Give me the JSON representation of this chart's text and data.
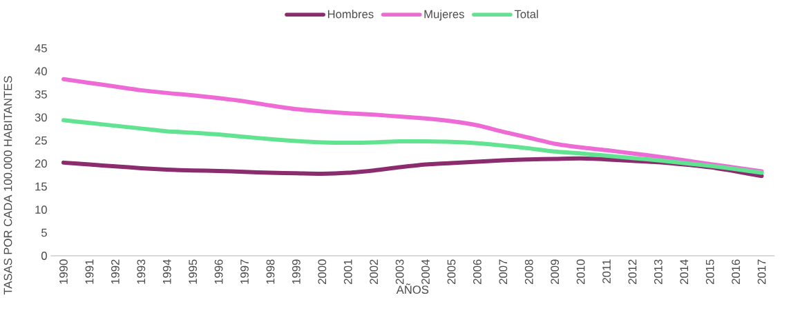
{
  "chart_data": {
    "type": "line",
    "xlabel": "AÑOS",
    "ylabel": "TASAS POR CADA 100.000 HABITANTES",
    "categories": [
      "1990",
      "1991",
      "1992",
      "1993",
      "1994",
      "1995",
      "1996",
      "1997",
      "1998",
      "1999",
      "2000",
      "2001",
      "2002",
      "2003",
      "2004",
      "2005",
      "2006",
      "2007",
      "2008",
      "2009",
      "2010",
      "2011",
      "2012",
      "2013",
      "2014",
      "2015",
      "2016",
      "2017"
    ],
    "series": [
      {
        "name": "Hombres",
        "color": "#8b2c6e",
        "values": [
          20.2,
          19.8,
          19.4,
          19.0,
          18.7,
          18.5,
          18.4,
          18.2,
          18.0,
          17.9,
          17.8,
          18.0,
          18.5,
          19.2,
          19.8,
          20.1,
          20.4,
          20.7,
          20.9,
          21.0,
          21.1,
          20.9,
          20.6,
          20.3,
          19.8,
          19.2,
          18.3,
          17.3
        ]
      },
      {
        "name": "Mujeres",
        "color": "#ee6ad4",
        "values": [
          38.3,
          37.5,
          36.7,
          35.9,
          35.3,
          34.8,
          34.2,
          33.5,
          32.6,
          31.8,
          31.3,
          30.9,
          30.6,
          30.2,
          29.8,
          29.2,
          28.3,
          26.9,
          25.6,
          24.3,
          23.5,
          22.9,
          22.2,
          21.5,
          20.7,
          19.9,
          19.1,
          18.3
        ]
      },
      {
        "name": "Total",
        "color": "#62e391",
        "values": [
          29.4,
          28.8,
          28.2,
          27.6,
          27.0,
          26.7,
          26.3,
          25.8,
          25.3,
          24.9,
          24.6,
          24.5,
          24.6,
          24.8,
          24.8,
          24.7,
          24.4,
          23.9,
          23.3,
          22.6,
          22.2,
          21.7,
          21.2,
          20.7,
          20.1,
          19.5,
          18.8,
          18.0
        ]
      }
    ],
    "ylim": [
      0,
      45
    ],
    "yticks": [
      0,
      5,
      10,
      15,
      20,
      25,
      30,
      35,
      40,
      45
    ],
    "grid": false,
    "legend": "top",
    "marker": "none",
    "line_style": "solid"
  }
}
